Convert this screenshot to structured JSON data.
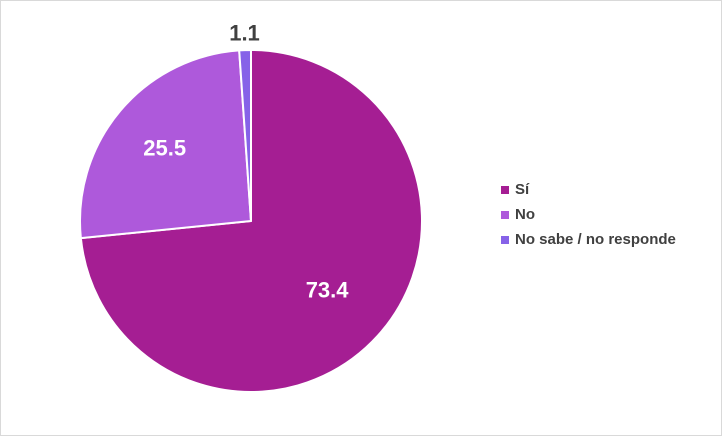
{
  "chart_data": {
    "type": "pie",
    "title": "",
    "categories": [
      "Sí",
      "No",
      "No sabe / no responde"
    ],
    "values": [
      73.4,
      25.5,
      1.1
    ],
    "labels": [
      "73.4",
      "25.5",
      "1.1"
    ],
    "colors": [
      "#A51E93",
      "#AE59DB",
      "#8662E8"
    ],
    "label_colors": [
      "#ffffff",
      "#ffffff",
      "#404040"
    ],
    "start_angle_deg": 0,
    "direction": "clockwise",
    "legend_position": "right"
  }
}
